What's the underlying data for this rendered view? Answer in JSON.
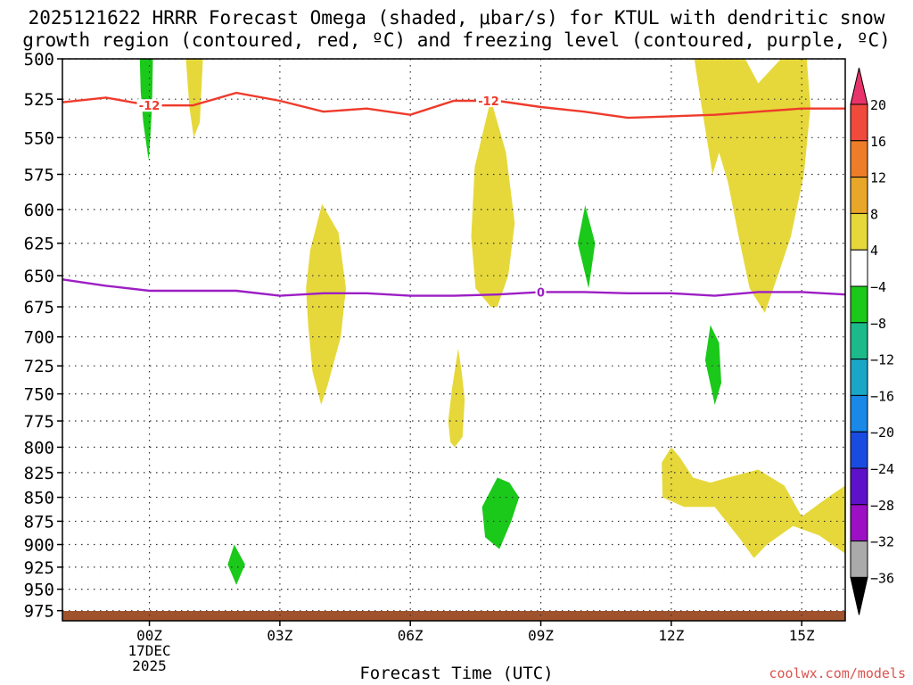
{
  "title_line1": "2025121622 HRRR Forecast Omega (shaded, μbar/s) for KTUL with dendritic snow",
  "title_line2": "growth region (contoured, red, ºC) and freezing level (contoured, purple, ºC)",
  "xlabel": "Forecast Time (UTC)",
  "credit": "coolwx.com/models",
  "chart_data": {
    "type": "area",
    "x_unit": "hours after 00Z 17 Dec 2025",
    "xlim": [
      -2,
      16
    ],
    "ylim": [
      987,
      500
    ],
    "y_scale": "log-pressure",
    "y_unit": "hPa",
    "yticks": [
      500,
      525,
      550,
      575,
      600,
      625,
      650,
      675,
      700,
      725,
      750,
      775,
      800,
      825,
      850,
      875,
      900,
      925,
      950,
      975
    ],
    "xticks": [
      {
        "x": 0,
        "lines": [
          "00Z",
          "17DEC",
          "2025"
        ]
      },
      {
        "x": 3,
        "lines": [
          "03Z"
        ]
      },
      {
        "x": 6,
        "lines": [
          "06Z"
        ]
      },
      {
        "x": 9,
        "lines": [
          "09Z"
        ]
      },
      {
        "x": 12,
        "lines": [
          "12Z"
        ]
      },
      {
        "x": 15,
        "lines": [
          "15Z"
        ]
      }
    ],
    "grid": true,
    "colorbar": {
      "labels": [
        "20",
        "16",
        "12",
        "8",
        "4",
        "−4",
        "−8",
        "−12",
        "−16",
        "−20",
        "−24",
        "−28",
        "−32",
        "−36"
      ],
      "colors": [
        "#e8336b",
        "#f04a3c",
        "#ee7d2a",
        "#e9a72a",
        "#e6d83a",
        "#ffffff",
        "#1ac91a",
        "#1cb98a",
        "#1aa7c7",
        "#1a88e6",
        "#1a4be0",
        "#5d12c9",
        "#9c0fc4",
        "#aaaaaa",
        "#000000"
      ]
    },
    "shaded_regions": [
      {
        "value": 6,
        "color": "#e6d83a",
        "points": [
          [
            0.84,
            500
          ],
          [
            1.23,
            500
          ],
          [
            1.16,
            540
          ],
          [
            1.02,
            550
          ],
          [
            0.92,
            530
          ]
        ]
      },
      {
        "value": -6,
        "color": "#1ac91a",
        "points": [
          [
            -0.22,
            500
          ],
          [
            0.08,
            500
          ],
          [
            0.06,
            530
          ],
          [
            0.02,
            550
          ],
          [
            -0.02,
            565
          ],
          [
            -0.14,
            540
          ],
          [
            -0.2,
            520
          ]
        ]
      },
      {
        "value": 6,
        "color": "#e6d83a",
        "points": [
          [
            3.97,
            596
          ],
          [
            4.35,
            617
          ],
          [
            4.52,
            660
          ],
          [
            4.4,
            700
          ],
          [
            4.1,
            742
          ],
          [
            3.95,
            760
          ],
          [
            3.75,
            730
          ],
          [
            3.65,
            690
          ],
          [
            3.6,
            660
          ],
          [
            3.7,
            630
          ]
        ]
      },
      {
        "value": 6,
        "color": "#e6d83a",
        "points": [
          [
            7.85,
            525
          ],
          [
            8.2,
            560
          ],
          [
            8.4,
            610
          ],
          [
            8.25,
            650
          ],
          [
            8.0,
            675
          ],
          [
            7.85,
            675
          ],
          [
            7.5,
            660
          ],
          [
            7.4,
            620
          ],
          [
            7.48,
            570
          ]
        ]
      },
      {
        "value": 6,
        "color": "#e6d83a",
        "points": [
          [
            7.02,
            800
          ],
          [
            7.2,
            790
          ],
          [
            7.25,
            755
          ],
          [
            7.18,
            730
          ],
          [
            7.1,
            710
          ],
          [
            6.96,
            745
          ],
          [
            6.87,
            775
          ],
          [
            6.92,
            795
          ]
        ]
      },
      {
        "value": -6,
        "color": "#1ac91a",
        "points": [
          [
            10.02,
            597
          ],
          [
            10.25,
            625
          ],
          [
            10.1,
            660
          ],
          [
            9.85,
            625
          ]
        ]
      },
      {
        "value": -6,
        "color": "#1ac91a",
        "points": [
          [
            12.9,
            690
          ],
          [
            13.1,
            705
          ],
          [
            13.15,
            740
          ],
          [
            13.0,
            760
          ],
          [
            12.78,
            720
          ]
        ]
      },
      {
        "value": -6,
        "color": "#1ac91a",
        "points": [
          [
            8.0,
            830
          ],
          [
            8.28,
            835
          ],
          [
            8.5,
            850
          ],
          [
            8.32,
            875
          ],
          [
            8.05,
            905
          ],
          [
            7.72,
            892
          ],
          [
            7.65,
            860
          ]
        ]
      },
      {
        "value": -6,
        "color": "#1ac91a",
        "points": [
          [
            1.95,
            900
          ],
          [
            2.2,
            922
          ],
          [
            2.0,
            945
          ],
          [
            1.8,
            922
          ]
        ]
      },
      {
        "value": 6,
        "color": "#e6d83a",
        "points": [
          [
            12.5,
            495
          ],
          [
            13.6,
            495
          ],
          [
            14.0,
            515
          ],
          [
            14.7,
            495
          ],
          [
            15.1,
            495
          ],
          [
            15.2,
            530
          ],
          [
            15.05,
            575
          ],
          [
            14.75,
            620
          ],
          [
            14.45,
            650
          ],
          [
            14.15,
            680
          ],
          [
            13.8,
            660
          ],
          [
            13.55,
            620
          ],
          [
            13.3,
            580
          ],
          [
            13.1,
            560
          ],
          [
            12.95,
            575
          ],
          [
            12.7,
            530
          ]
        ]
      },
      {
        "value": 6,
        "color": "#e6d83a",
        "points": [
          [
            12.0,
            800
          ],
          [
            12.2,
            810
          ],
          [
            12.5,
            830
          ],
          [
            12.9,
            835
          ],
          [
            13.3,
            830
          ],
          [
            14.0,
            822
          ],
          [
            14.6,
            838
          ],
          [
            15.0,
            870
          ],
          [
            15.6,
            850
          ],
          [
            16.0,
            838
          ],
          [
            16.0,
            910
          ],
          [
            15.4,
            890
          ],
          [
            14.8,
            880
          ],
          [
            14.2,
            900
          ],
          [
            13.9,
            915
          ],
          [
            13.6,
            895
          ],
          [
            13.0,
            860
          ],
          [
            12.3,
            860
          ],
          [
            11.8,
            850
          ],
          [
            11.78,
            815
          ]
        ]
      }
    ],
    "series": [
      {
        "name": "Dendritic growth region (−12 °C)",
        "color": "#ef3b2c",
        "label": "-12",
        "label_at": [
          0,
          7.8
        ],
        "x": [
          -2,
          -1,
          0,
          1,
          2,
          3,
          4,
          5,
          6,
          7,
          8,
          9,
          10,
          11,
          12,
          13,
          14,
          15,
          16
        ],
        "values": [
          527,
          524,
          529,
          529,
          521,
          526,
          533,
          531,
          535,
          526,
          526,
          530,
          533,
          537,
          536,
          535,
          533,
          531,
          531
        ]
      },
      {
        "name": "Freezing level (0 °C)",
        "color": "#9c1ec4",
        "label": "0",
        "label_at": [
          9
        ],
        "x": [
          -2,
          -1,
          0,
          1,
          2,
          3,
          4,
          5,
          6,
          7,
          8,
          9,
          10,
          11,
          12,
          13,
          14,
          15,
          16
        ],
        "values": [
          653,
          658,
          662,
          662,
          662,
          666,
          664,
          664,
          666,
          666,
          665,
          663,
          663,
          664,
          664,
          666,
          663,
          663,
          665
        ]
      }
    ],
    "terrain": {
      "color": "#a0522d",
      "top": 987
    }
  }
}
